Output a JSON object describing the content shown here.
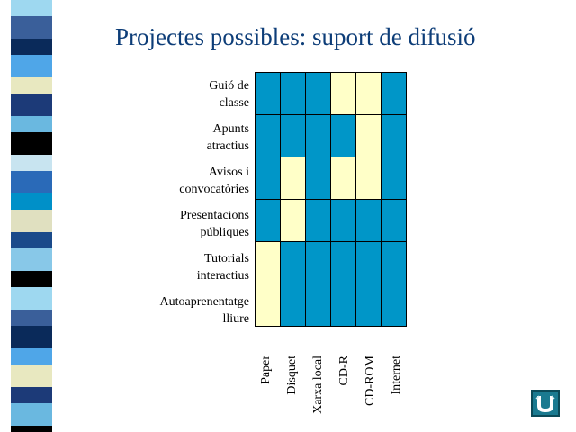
{
  "title": "Projectes possibles: suport de difusió",
  "rows": [
    {
      "label_1": "Guió de",
      "label_2": "classe"
    },
    {
      "label_1": "Apunts",
      "label_2": "atractius"
    },
    {
      "label_1": "Avisos i",
      "label_2": "convocatòries"
    },
    {
      "label_1": "Presentacions",
      "label_2": "públiques"
    },
    {
      "label_1": "Tutorials",
      "label_2": "interactius"
    },
    {
      "label_1": "Autoaprenentatge",
      "label_2": "lliure"
    }
  ],
  "columns": [
    "Paper",
    "Disquet",
    "Xarxa local",
    "CD-R",
    "CD-ROM",
    "Internet"
  ],
  "matrix": [
    [
      1,
      1,
      1,
      0,
      0,
      1
    ],
    [
      1,
      1,
      1,
      1,
      0,
      1
    ],
    [
      1,
      0,
      1,
      0,
      0,
      1
    ],
    [
      1,
      0,
      1,
      1,
      1,
      1
    ],
    [
      0,
      1,
      1,
      1,
      1,
      1
    ],
    [
      0,
      1,
      1,
      1,
      1,
      1
    ]
  ],
  "colors": {
    "supported": "#0096c8",
    "unsupported": "#ffffc8",
    "title": "#0d3d78"
  },
  "nav": {
    "icon": "return-icon"
  }
}
